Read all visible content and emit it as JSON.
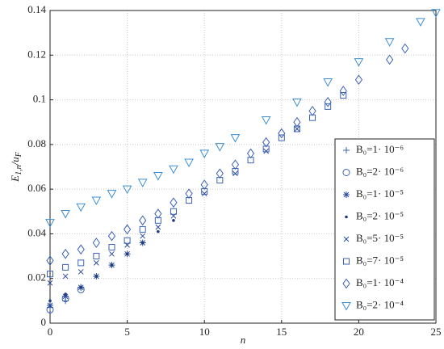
{
  "chart_data": {
    "type": "scatter",
    "xlabel": "n",
    "ylabel": [
      "E",
      "1,n",
      "/u",
      "F"
    ],
    "xlim": [
      0,
      25
    ],
    "ylim": [
      0,
      0.14
    ],
    "xticks": [
      0,
      5,
      10,
      15,
      20,
      25
    ],
    "yticks": [
      0,
      0.02,
      0.04,
      0.06,
      0.08,
      0.1,
      0.12,
      0.14
    ],
    "grid": true,
    "legend": "right",
    "series": [
      {
        "name": "B₀=1· 10⁻⁶",
        "marker": "+",
        "color": "#3b62b5",
        "x": [
          0,
          1,
          2
        ],
        "values": [
          0.007,
          0.01,
          0.016
        ]
      },
      {
        "name": "B₀=2· 10⁻⁶",
        "marker": "o",
        "color": "#3b62b5",
        "x": [
          0,
          1,
          2
        ],
        "values": [
          0.006,
          0.011,
          0.015
        ]
      },
      {
        "name": "B₀=1· 10⁻⁵",
        "marker": "*",
        "color": "#2a4a9a",
        "x": [
          0,
          1,
          2,
          3,
          4,
          5,
          6
        ],
        "values": [
          0.008,
          0.012,
          0.016,
          0.021,
          0.026,
          0.031,
          0.036
        ]
      },
      {
        "name": "B₀=2· 10⁻⁵",
        "marker": ".",
        "color": "#1f3a80",
        "x": [
          0,
          1,
          2,
          3,
          4,
          5,
          6,
          7,
          8
        ],
        "values": [
          0.01,
          0.013,
          0.016,
          0.021,
          0.026,
          0.031,
          0.036,
          0.041,
          0.046
        ]
      },
      {
        "name": "B₀=5· 10⁻⁵",
        "marker": "x",
        "color": "#2a4a9a",
        "x": [
          0,
          1,
          2,
          3,
          4,
          5,
          6,
          7,
          8,
          10,
          12,
          14,
          16
        ],
        "values": [
          0.018,
          0.021,
          0.023,
          0.027,
          0.031,
          0.035,
          0.039,
          0.043,
          0.048,
          0.058,
          0.067,
          0.077,
          0.087
        ]
      },
      {
        "name": "B₀=7· 10⁻⁵",
        "marker": "s",
        "color": "#3b62b5",
        "x": [
          0,
          1,
          2,
          3,
          4,
          5,
          6,
          7,
          8,
          9,
          10,
          11,
          12,
          13,
          14,
          15,
          16,
          17,
          18,
          19
        ],
        "values": [
          0.022,
          0.025,
          0.027,
          0.03,
          0.034,
          0.037,
          0.042,
          0.046,
          0.05,
          0.055,
          0.059,
          0.064,
          0.068,
          0.073,
          0.078,
          0.083,
          0.087,
          0.092,
          0.097,
          0.102
        ]
      },
      {
        "name": "B₀=1· 10⁻⁴",
        "marker": "d",
        "color": "#3b62b5",
        "x": [
          0,
          1,
          2,
          3,
          4,
          5,
          6,
          7,
          8,
          9,
          10,
          11,
          12,
          13,
          14,
          15,
          16,
          17,
          18,
          19,
          20,
          22,
          23
        ],
        "values": [
          0.028,
          0.031,
          0.033,
          0.036,
          0.039,
          0.042,
          0.046,
          0.049,
          0.054,
          0.058,
          0.062,
          0.067,
          0.071,
          0.076,
          0.081,
          0.085,
          0.09,
          0.095,
          0.099,
          0.104,
          0.109,
          0.118,
          0.123
        ]
      },
      {
        "name": "B₀=2· 10⁻⁴",
        "marker": "v",
        "color": "#3d8fd1",
        "x": [
          0,
          1,
          2,
          3,
          4,
          5,
          6,
          7,
          8,
          9,
          10,
          11,
          12,
          14,
          16,
          18,
          20,
          22,
          24,
          25
        ],
        "values": [
          0.045,
          0.049,
          0.052,
          0.055,
          0.058,
          0.06,
          0.063,
          0.066,
          0.069,
          0.072,
          0.076,
          0.079,
          0.083,
          0.091,
          0.099,
          0.108,
          0.117,
          0.126,
          0.135,
          0.139
        ]
      }
    ]
  }
}
